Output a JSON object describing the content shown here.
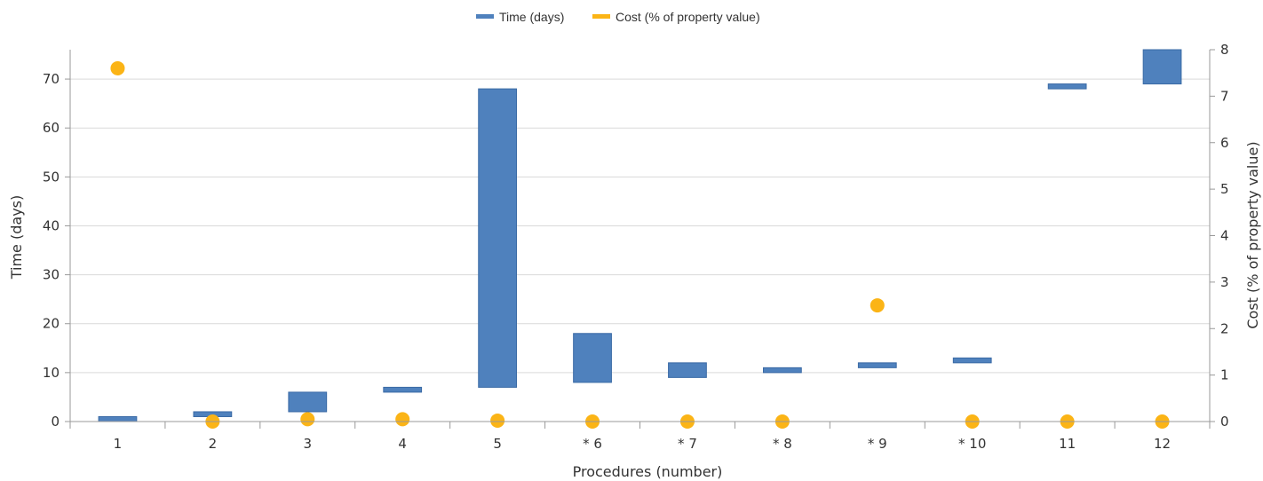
{
  "chart_data": {
    "type": "bar",
    "subtype": "floating-bar-with-scatter",
    "categories": [
      "1",
      "2",
      "3",
      "4",
      "5",
      "* 6",
      "* 7",
      "* 8",
      "* 9",
      "* 10",
      "11",
      "12"
    ],
    "series": [
      {
        "name": "Time (days)",
        "axis": "left",
        "color": "#4f81bd",
        "ranges": [
          [
            0,
            1
          ],
          [
            1,
            2
          ],
          [
            2,
            6
          ],
          [
            6,
            7
          ],
          [
            7,
            68
          ],
          [
            8,
            18
          ],
          [
            9,
            12
          ],
          [
            10,
            11
          ],
          [
            11,
            12
          ],
          [
            12,
            13
          ],
          [
            68,
            69
          ],
          [
            69,
            76
          ]
        ]
      },
      {
        "name": "Cost (% of property value)",
        "axis": "right",
        "color": "#fbb416",
        "values": [
          7.6,
          0.0,
          0.05,
          0.05,
          0.02,
          0.0,
          0.0,
          0.0,
          2.5,
          0.0,
          0.0,
          0.0
        ]
      }
    ],
    "xlabel": "Procedures (number)",
    "ylabel": "Time (days)",
    "y2label": "Cost (% of property value)",
    "ylim": [
      0,
      76
    ],
    "y2lim": [
      0,
      8
    ],
    "yticks": [
      0,
      10,
      20,
      30,
      40,
      50,
      60,
      70
    ],
    "y2ticks": [
      0,
      1,
      2,
      3,
      4,
      5,
      6,
      7,
      8
    ],
    "grid": true,
    "legend": "top-center"
  }
}
